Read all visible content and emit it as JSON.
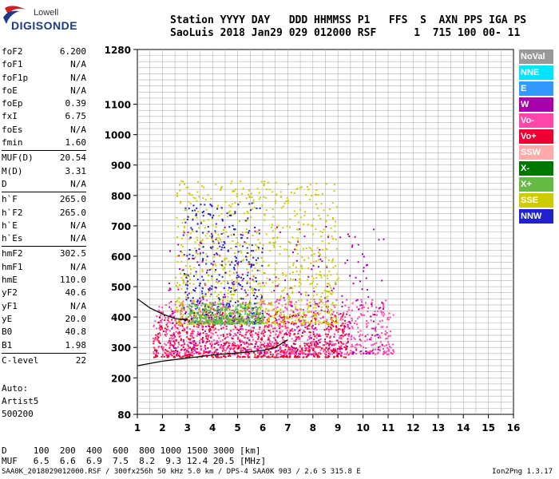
{
  "logo": {
    "brand_top": "Lowell",
    "brand_main": "DIGISONDE"
  },
  "header": {
    "line1": "Station YYYY DAY   DDD HHMMSS P1   FFS  S  AXN PPS IGA PS",
    "line2": "SaoLuis 2018 Jan29 029 012000 RSF      1  715 100 00- 11"
  },
  "params": [
    {
      "label": "foF2",
      "value": "6.200"
    },
    {
      "label": "foF1",
      "value": "N/A"
    },
    {
      "label": "foF1p",
      "value": "N/A"
    },
    {
      "label": "foE",
      "value": "N/A"
    },
    {
      "label": "foEp",
      "value": "0.39"
    },
    {
      "label": "fxI",
      "value": "6.75"
    },
    {
      "label": "foEs",
      "value": "N/A"
    },
    {
      "label": "fmin",
      "value": "1.60"
    },
    {
      "label": "MUF(D)",
      "value": "20.54"
    },
    {
      "label": "M(D)",
      "value": "3.31"
    },
    {
      "label": "D",
      "value": "N/A"
    },
    {
      "label": "h`F",
      "value": "265.0"
    },
    {
      "label": "h`F2",
      "value": "265.0"
    },
    {
      "label": "h`E",
      "value": "N/A"
    },
    {
      "label": "h`Es",
      "value": "N/A"
    },
    {
      "label": "hmF2",
      "value": "302.5"
    },
    {
      "label": "hmF1",
      "value": "N/A"
    },
    {
      "label": "hmE",
      "value": "110.0"
    },
    {
      "label": "yF2",
      "value": "40.6"
    },
    {
      "label": "yF1",
      "value": "N/A"
    },
    {
      "label": "yE",
      "value": "20.0"
    },
    {
      "label": "B0",
      "value": "40.8"
    },
    {
      "label": "B1",
      "value": "1.98"
    },
    {
      "label": "C-level",
      "value": "22"
    }
  ],
  "auto": {
    "line1": "Auto:",
    "line2": "Artist5",
    "line3": "500200"
  },
  "legend": [
    {
      "label": "NoVal",
      "color": "#999999"
    },
    {
      "label": "NNE",
      "color": "#00e5ff"
    },
    {
      "label": "E",
      "color": "#3399ff"
    },
    {
      "label": "W",
      "color": "#aa00aa"
    },
    {
      "label": "Vo-",
      "color": "#ff44aa"
    },
    {
      "label": "Vo+",
      "color": "#ee0033"
    },
    {
      "label": "SSW",
      "color": "#ffaaaa"
    },
    {
      "label": "X-",
      "color": "#007700"
    },
    {
      "label": "X+",
      "color": "#66bb44"
    },
    {
      "label": "SSE",
      "color": "#cccc00"
    },
    {
      "label": "NNW",
      "color": "#2222cc"
    }
  ],
  "footer": {
    "d_line": "D     100  200  400  600  800 1000 1500 3000 [km]",
    "muf_line": "MUF   6.5  6.6  6.9  7.5  8.2  9.3 12.4 20.5 [MHz]",
    "file_line": "SAA0K_2018029012000.RSF / 300fx256h 50 kHz 5.0 km / DPS-4 SAA0K 903 / 2.6 S 315.8 E",
    "version": "Ion2Png 1.3.17"
  },
  "chart_data": {
    "type": "scatter",
    "title": "",
    "xlabel": "",
    "ylabel": "",
    "xlim": [
      1,
      16
    ],
    "ylim": [
      80,
      1280
    ],
    "x_ticks": [
      1,
      2,
      3,
      4,
      5,
      6,
      7,
      8,
      9,
      10,
      11,
      12,
      13,
      14,
      15,
      16
    ],
    "y_ticks": [
      80,
      200,
      300,
      400,
      500,
      600,
      700,
      800,
      900,
      1000,
      1100,
      1280
    ],
    "series": [
      {
        "name": "Vo+",
        "color": "#ee0033",
        "regions": [
          {
            "x": [
              1.6,
              9.4
            ],
            "y": [
              270,
              420
            ],
            "density": "high"
          }
        ]
      },
      {
        "name": "Vo-",
        "color": "#ff44aa",
        "regions": [
          {
            "x": [
              1.6,
              11.2
            ],
            "y": [
              280,
              460
            ],
            "density": "high"
          }
        ]
      },
      {
        "name": "W",
        "color": "#aa00aa",
        "regions": [
          {
            "x": [
              2.2,
              10.8
            ],
            "y": [
              280,
              700
            ],
            "density": "medium"
          }
        ]
      },
      {
        "name": "SSE",
        "color": "#cccc00",
        "regions": [
          {
            "x": [
              2.5,
              9.0
            ],
            "y": [
              380,
              850
            ],
            "density": "high"
          }
        ]
      },
      {
        "name": "NNW",
        "color": "#2222cc",
        "regions": [
          {
            "x": [
              2.8,
              6.0
            ],
            "y": [
              380,
              780
            ],
            "density": "medium"
          }
        ]
      },
      {
        "name": "X+",
        "color": "#66bb44",
        "regions": [
          {
            "x": [
              3.0,
              6.0
            ],
            "y": [
              380,
              450
            ],
            "density": "medium"
          }
        ]
      }
    ],
    "profile_curve": [
      [
        1,
        240
      ],
      [
        2,
        255
      ],
      [
        3,
        265
      ],
      [
        4,
        275
      ],
      [
        5,
        282
      ],
      [
        6,
        290
      ],
      [
        6.5,
        300
      ],
      [
        7,
        325
      ]
    ],
    "trace_curve": [
      [
        1,
        460
      ],
      [
        1.5,
        430
      ],
      [
        2,
        410
      ],
      [
        2.5,
        395
      ],
      [
        3,
        390
      ]
    ],
    "grid": true
  }
}
